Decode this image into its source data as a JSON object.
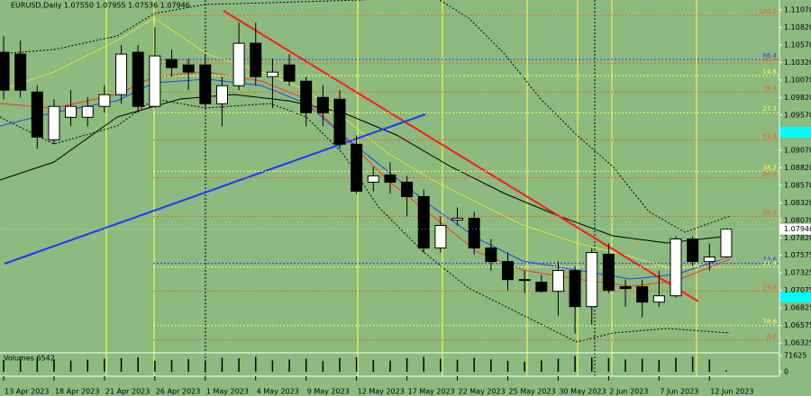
{
  "chart_data": [
    {
      "type": "candlestick",
      "title": "EURUSD,Daily 1.07550 1.07955 1.07536 1.07946",
      "categories": [
        "13 Apr 2023",
        null,
        null,
        "18 Apr 2023",
        null,
        null,
        "21 Apr 2023",
        null,
        null,
        "26 Apr 2023",
        null,
        null,
        "1 May 2023",
        null,
        null,
        "4 May 2023",
        null,
        null,
        "9 May 2023",
        null,
        null,
        "12 May 2023",
        null,
        null,
        "17 May 2023",
        null,
        null,
        "22 May 2023",
        null,
        null,
        "25 May 2023",
        null,
        null,
        "30 May 2023",
        null,
        null,
        "2 Jun 2023",
        null,
        null,
        "7 Jun 2023",
        null,
        null,
        "12 Jun 2023",
        null
      ],
      "open": [
        1.10466,
        1.1044,
        1.099,
        1.09219,
        1.0954,
        1.0954,
        1.09695,
        1.09862,
        1.10466,
        1.09695,
        1.10363,
        1.10286,
        1.10286,
        1.09733,
        1.0999,
        1.10594,
        1.10119,
        1.10286,
        1.10054,
        1.09823,
        1.09797,
        1.09155,
        1.08615,
        1.08718,
        1.08615,
        1.0841,
        1.07677,
        1.08076,
        1.08101,
        1.07677,
        1.07484,
        1.07227,
        1.07189,
        1.0706,
        1.07356,
        1.06842,
        1.07587,
        1.07125,
        1.07125,
        1.06906,
        1.06996,
        1.07806,
        1.07484,
        1.0755
      ],
      "high": [
        1.10697,
        1.10633,
        1.0999,
        1.09797,
        1.09926,
        1.09823,
        1.0999,
        1.10568,
        1.10568,
        1.10825,
        1.10504,
        1.10376,
        1.1044,
        1.10119,
        1.1089,
        1.1089,
        1.10376,
        1.1044,
        1.10119,
        1.0999,
        1.09926,
        1.09283,
        1.08834,
        1.08898,
        1.08705,
        1.08512,
        1.08127,
        1.08255,
        1.08191,
        1.07806,
        1.07613,
        1.07356,
        1.07292,
        1.07484,
        1.0742,
        1.07677,
        1.07741,
        1.07227,
        1.07227,
        1.07356,
        1.07844,
        1.07844,
        1.07741,
        1.07955
      ],
      "low": [
        1.09797,
        1.09823,
        1.09091,
        1.09155,
        1.09412,
        1.09412,
        1.09605,
        1.09733,
        1.09605,
        1.09669,
        1.10119,
        1.09926,
        1.09669,
        1.09412,
        1.09926,
        1.0999,
        1.09669,
        1.0999,
        1.09412,
        1.09412,
        1.09091,
        1.08448,
        1.08487,
        1.08448,
        1.08127,
        1.07613,
        1.07613,
        1.07998,
        1.07587,
        1.07356,
        1.07073,
        1.07035,
        1.07035,
        1.06713,
        1.06456,
        1.06585,
        1.07035,
        1.06842,
        1.06688,
        1.06842,
        1.06971,
        1.0742,
        1.07356,
        1.07536
      ],
      "close": [
        1.09926,
        1.09926,
        1.09258,
        1.09695,
        1.09695,
        1.09695,
        1.09862,
        1.1044,
        1.09695,
        1.10414,
        1.10247,
        1.10183,
        1.09733,
        1.0999,
        1.10594,
        1.10119,
        1.10183,
        1.10054,
        1.09605,
        1.09605,
        1.09155,
        1.08487,
        1.08705,
        1.08615,
        1.0841,
        1.07677,
        1.07998,
        1.08101,
        1.07677,
        1.07484,
        1.07227,
        1.07227,
        1.0706,
        1.07356,
        1.06842,
        1.07613,
        1.07073,
        1.07099,
        1.06906,
        1.06996,
        1.07806,
        1.07484,
        1.07549,
        1.07946
      ],
      "up_color": "#ffffff",
      "down_color": "#000000",
      "ylim": [
        1.06171,
        1.11211
      ],
      "yticks": [
        {
          "value": 1.1107,
          "label": "1.11070"
        },
        {
          "value": 1.1082,
          "label": "1.10820"
        },
        {
          "value": 1.1057,
          "label": "1.10570"
        },
        {
          "value": 1.1032,
          "label": "1.10320"
        },
        {
          "value": 1.1007,
          "label": "1.10070"
        },
        {
          "value": 1.0982,
          "label": "1.09820"
        },
        {
          "value": 1.0957,
          "label": "1.09570"
        },
        {
          "value": 1.0907,
          "label": "1.09070"
        },
        {
          "value": 1.0882,
          "label": "1.08820"
        },
        {
          "value": 1.0857,
          "label": "1.08570"
        },
        {
          "value": 1.0832,
          "label": "1.08320"
        },
        {
          "value": 1.0807,
          "label": "1.08070"
        },
        {
          "value": 1.0782,
          "label": "1.07820"
        },
        1.07575,
        1.07325,
        1.07075,
        1.06825,
        1.06575,
        1.06325
      ],
      "last_price": 1.07946,
      "fib_levels": [
        {
          "label": "100.0",
          "value": 1.10993,
          "color": "#ff5a1e"
        },
        {
          "label": "86.4",
          "value": 1.10363,
          "color": "#2040ff"
        },
        {
          "label": "85.4",
          "value": 1.10311,
          "color": "#ff5a1e"
        },
        {
          "label": "14.6",
          "value": 1.10132,
          "color": "#ffff60"
        },
        {
          "label": "76.4",
          "value": 1.099,
          "color": "#ff5a1e"
        },
        {
          "label": "27.2",
          "value": 1.09605,
          "color": "#ffff60"
        },
        {
          "label": "61.8",
          "value": 1.09219,
          "color": "#ff5a1e"
        },
        {
          "label": "38.2",
          "value": 1.08769,
          "color": "#ffff60"
        },
        {
          "label": "50.0",
          "value": 1.08679,
          "color": "#ff5a1e"
        },
        {
          "label": "38.2",
          "value": 1.08127,
          "color": "#ff5a1e"
        },
        {
          "label": "23.6",
          "value": 1.07459,
          "color": "#2040ff"
        },
        {
          "label": "21.4",
          "value": 1.07407,
          "color": "#ffff60"
        },
        {
          "label": "14.6",
          "value": 1.0706,
          "color": "#ff5a1e"
        },
        {
          "label": "78.6",
          "value": 1.06572,
          "color": "#ffff60"
        },
        {
          "label": "0.0",
          "value": 1.06366,
          "color": "#ff5a1e"
        }
      ]
    },
    {
      "type": "bar",
      "title": "Volumes 6542",
      "values": [
        52000,
        58000,
        61000,
        55000,
        49000,
        53000,
        57000,
        60000,
        63000,
        48000,
        51000,
        56000,
        45000,
        62000,
        59000,
        66000,
        50000,
        54000,
        58000,
        47000,
        61000,
        64000,
        52000,
        49000,
        60000,
        65000,
        57000,
        53000,
        61000,
        55000,
        48000,
        44000,
        50000,
        58000,
        69000,
        63000,
        60000,
        54000,
        57000,
        52000,
        62000,
        66000,
        55000,
        6542
      ],
      "color": "#000000",
      "ylim": [
        0,
        71625
      ],
      "yticks": [
        71625,
        0
      ]
    }
  ]
}
